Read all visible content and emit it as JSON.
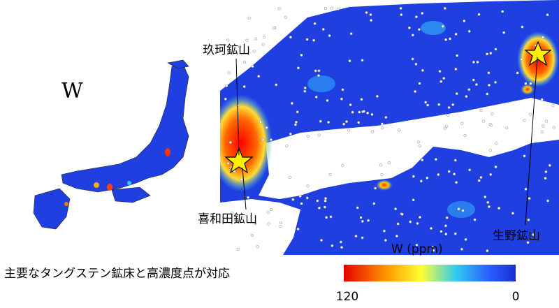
{
  "map_label": "W",
  "mines": [
    {
      "label": "玖珂鉱山"
    },
    {
      "label": "喜和田鉱山"
    },
    {
      "label": "生野鉱山"
    }
  ],
  "colorbar": {
    "title": "W (ppm)",
    "max": 120,
    "min": 0
  },
  "caption": "主要なタングステン鉱床と高濃度点が対応"
}
